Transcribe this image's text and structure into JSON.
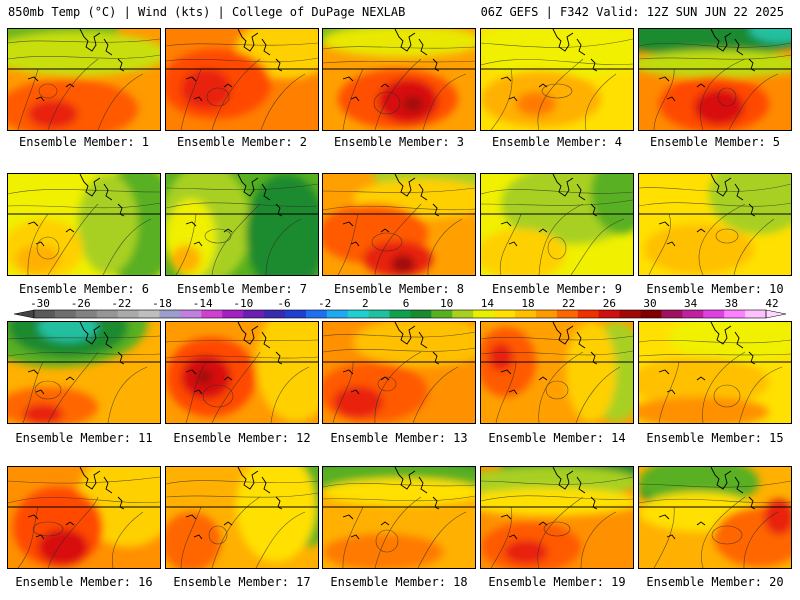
{
  "header": {
    "left": "850mb Temp (°C) | Wind (kts) | College of DuPage NEXLAB",
    "right": "06Z GEFS | F342 Valid: 12Z SUN JUN 22 2025"
  },
  "colorbar": {
    "labels": [
      "-30",
      "-26",
      "-22",
      "-18",
      "-14",
      "-10",
      "-6",
      "-2",
      "2",
      "6",
      "10",
      "14",
      "18",
      "22",
      "26",
      "30",
      "34",
      "38",
      "42"
    ],
    "colors": [
      "#5a5a5a",
      "#6e6e6e",
      "#828282",
      "#969696",
      "#aaaaaa",
      "#bebebe",
      "#9d9dcc",
      "#c080e0",
      "#d040d0",
      "#a020c0",
      "#6a1fb0",
      "#3a2ab0",
      "#1f3fd0",
      "#1f6ff0",
      "#20a8f0",
      "#20d0d0",
      "#20c0a0",
      "#10a050",
      "#1a8a2e",
      "#58b020",
      "#a8d020",
      "#e8f000",
      "#ffe000",
      "#ffc000",
      "#ff9900",
      "#ff6600",
      "#f03000",
      "#d01010",
      "#a00808",
      "#800000",
      "#a01060",
      "#c020a0",
      "#e040e0",
      "#ff80ff",
      "#ffc0ff"
    ]
  },
  "panels": [
    {
      "caption": "Ensemble Member: 1",
      "base": "#ff9a00",
      "layers": [
        {
          "c": "#6fb51c",
          "cx": 30,
          "cy": 0,
          "rx": 80,
          "ry": 30
        },
        {
          "c": "#c9df0f",
          "cx": 70,
          "cy": 25,
          "rx": 90,
          "ry": 22
        },
        {
          "c": "#ff5a00",
          "cx": 60,
          "cy": 80,
          "rx": 70,
          "ry": 30
        },
        {
          "c": "#e82010",
          "cx": 45,
          "cy": 85,
          "rx": 25,
          "ry": 14
        }
      ]
    },
    {
      "caption": "Ensemble Member: 2",
      "base": "#ff8000",
      "layers": [
        {
          "c": "#ffd000",
          "cx": 120,
          "cy": 20,
          "rx": 50,
          "ry": 30
        },
        {
          "c": "#ff4a00",
          "cx": 50,
          "cy": 55,
          "rx": 55,
          "ry": 35
        },
        {
          "c": "#e82010",
          "cx": 40,
          "cy": 60,
          "rx": 25,
          "ry": 20
        }
      ]
    },
    {
      "caption": "Ensemble Member: 3",
      "base": "#ffa000",
      "layers": [
        {
          "c": "#7dbb1e",
          "cx": 20,
          "cy": 0,
          "rx": 60,
          "ry": 18
        },
        {
          "c": "#e8e800",
          "cx": 80,
          "cy": 12,
          "rx": 80,
          "ry": 16
        },
        {
          "c": "#ff5000",
          "cx": 75,
          "cy": 70,
          "rx": 60,
          "ry": 30
        },
        {
          "c": "#d81010",
          "cx": 85,
          "cy": 72,
          "rx": 30,
          "ry": 22
        },
        {
          "c": "#a00808",
          "cx": 90,
          "cy": 75,
          "rx": 10,
          "ry": 8
        }
      ]
    },
    {
      "caption": "Ensemble Member: 4",
      "base": "#ffe000",
      "layers": [
        {
          "c": "#f0f000",
          "cx": 80,
          "cy": 20,
          "rx": 90,
          "ry": 30
        },
        {
          "c": "#ffb000",
          "cx": 60,
          "cy": 70,
          "rx": 60,
          "ry": 28
        },
        {
          "c": "#ff7a00",
          "cx": 55,
          "cy": 75,
          "rx": 20,
          "ry": 12
        }
      ]
    },
    {
      "caption": "Ensemble Member: 5",
      "base": "#ff8a00",
      "layers": [
        {
          "c": "#1a8a2e",
          "cx": 70,
          "cy": 0,
          "rx": 110,
          "ry": 28
        },
        {
          "c": "#20c0a0",
          "cx": 140,
          "cy": 0,
          "rx": 30,
          "ry": 14
        },
        {
          "c": "#c0dc10",
          "cx": 80,
          "cy": 35,
          "rx": 90,
          "ry": 14
        },
        {
          "c": "#ff4a00",
          "cx": 75,
          "cy": 75,
          "rx": 55,
          "ry": 28
        },
        {
          "c": "#d81010",
          "cx": 80,
          "cy": 78,
          "rx": 25,
          "ry": 18
        }
      ]
    },
    {
      "caption": "Ensemble Member: 6",
      "base": "#f0f000",
      "layers": [
        {
          "c": "#58b020",
          "cx": 130,
          "cy": 50,
          "rx": 40,
          "ry": 60
        },
        {
          "c": "#a8d020",
          "cx": 100,
          "cy": 50,
          "rx": 30,
          "ry": 50
        },
        {
          "c": "#ffd000",
          "cx": 35,
          "cy": 75,
          "rx": 40,
          "ry": 30
        },
        {
          "c": "#ffb000",
          "cx": 30,
          "cy": 85,
          "rx": 22,
          "ry": 14
        }
      ]
    },
    {
      "caption": "Ensemble Member: 7",
      "base": "#58b020",
      "layers": [
        {
          "c": "#a8d020",
          "cx": 40,
          "cy": 50,
          "rx": 45,
          "ry": 60
        },
        {
          "c": "#f0f000",
          "cx": 25,
          "cy": 65,
          "rx": 25,
          "ry": 40
        },
        {
          "c": "#ffb000",
          "cx": 20,
          "cy": 85,
          "rx": 15,
          "ry": 14
        },
        {
          "c": "#1a8a2e",
          "cx": 120,
          "cy": 60,
          "rx": 40,
          "ry": 60
        }
      ]
    },
    {
      "caption": "Ensemble Member: 8",
      "base": "#ffa000",
      "layers": [
        {
          "c": "#a8d020",
          "cx": 110,
          "cy": 0,
          "rx": 60,
          "ry": 20
        },
        {
          "c": "#ffd000",
          "cx": 100,
          "cy": 25,
          "rx": 70,
          "ry": 20
        },
        {
          "c": "#ff5a00",
          "cx": 50,
          "cy": 60,
          "rx": 55,
          "ry": 30
        },
        {
          "c": "#e82010",
          "cx": 75,
          "cy": 85,
          "rx": 35,
          "ry": 18
        },
        {
          "c": "#a00808",
          "cx": 80,
          "cy": 90,
          "rx": 12,
          "ry": 9
        }
      ]
    },
    {
      "caption": "Ensemble Member: 9",
      "base": "#f0f000",
      "layers": [
        {
          "c": "#a8d020",
          "cx": 90,
          "cy": 30,
          "rx": 70,
          "ry": 40
        },
        {
          "c": "#58b020",
          "cx": 140,
          "cy": 20,
          "rx": 30,
          "ry": 40
        },
        {
          "c": "#ffd000",
          "cx": 40,
          "cy": 80,
          "rx": 45,
          "ry": 25
        }
      ]
    },
    {
      "caption": "Ensemble Member: 10",
      "base": "#ffe000",
      "layers": [
        {
          "c": "#a8d020",
          "cx": 120,
          "cy": 20,
          "rx": 50,
          "ry": 40
        },
        {
          "c": "#ffc000",
          "cx": 60,
          "cy": 75,
          "rx": 55,
          "ry": 25
        }
      ]
    },
    {
      "caption": "Ensemble Member: 11",
      "base": "#ffb000",
      "layers": [
        {
          "c": "#58b020",
          "cx": 50,
          "cy": 0,
          "rx": 90,
          "ry": 45
        },
        {
          "c": "#1a8a2e",
          "cx": 60,
          "cy": 5,
          "rx": 60,
          "ry": 30
        },
        {
          "c": "#20c0a0",
          "cx": 60,
          "cy": 5,
          "rx": 30,
          "ry": 15
        },
        {
          "c": "#ff6600",
          "cx": 40,
          "cy": 85,
          "rx": 50,
          "ry": 20
        },
        {
          "c": "#e82010",
          "cx": 35,
          "cy": 92,
          "rx": 20,
          "ry": 10
        }
      ]
    },
    {
      "caption": "Ensemble Member: 12",
      "base": "#ff9a00",
      "layers": [
        {
          "c": "#ffd000",
          "cx": 130,
          "cy": 40,
          "rx": 40,
          "ry": 60
        },
        {
          "c": "#ff4a00",
          "cx": 45,
          "cy": 55,
          "rx": 45,
          "ry": 40
        },
        {
          "c": "#d81010",
          "cx": 40,
          "cy": 55,
          "rx": 25,
          "ry": 22
        },
        {
          "c": "#a00808",
          "cx": 38,
          "cy": 55,
          "rx": 8,
          "ry": 8
        }
      ]
    },
    {
      "caption": "Ensemble Member: 13",
      "base": "#ff9000",
      "layers": [
        {
          "c": "#ffc000",
          "cx": 100,
          "cy": 20,
          "rx": 70,
          "ry": 25
        },
        {
          "c": "#ff5a00",
          "cx": 50,
          "cy": 70,
          "rx": 55,
          "ry": 30
        },
        {
          "c": "#e82010",
          "cx": 35,
          "cy": 80,
          "rx": 25,
          "ry": 16
        }
      ]
    },
    {
      "caption": "Ensemble Member: 14",
      "base": "#ffa000",
      "layers": [
        {
          "c": "#a8d020",
          "cx": 135,
          "cy": 50,
          "rx": 30,
          "ry": 50
        },
        {
          "c": "#ffd000",
          "cx": 110,
          "cy": 50,
          "rx": 25,
          "ry": 50
        },
        {
          "c": "#ff5a00",
          "cx": 25,
          "cy": 40,
          "rx": 30,
          "ry": 35
        },
        {
          "c": "#e82010",
          "cx": 20,
          "cy": 35,
          "rx": 12,
          "ry": 14
        }
      ]
    },
    {
      "caption": "Ensemble Member: 15",
      "base": "#ffe000",
      "layers": [
        {
          "c": "#f0f000",
          "cx": 100,
          "cy": 15,
          "rx": 70,
          "ry": 25
        },
        {
          "c": "#ffc000",
          "cx": 60,
          "cy": 60,
          "rx": 70,
          "ry": 25
        },
        {
          "c": "#ff9000",
          "cx": 60,
          "cy": 90,
          "rx": 70,
          "ry": 15
        }
      ]
    },
    {
      "caption": "Ensemble Member: 16",
      "base": "#ff9000",
      "layers": [
        {
          "c": "#ffd000",
          "cx": 120,
          "cy": 30,
          "rx": 50,
          "ry": 50
        },
        {
          "c": "#ff4a00",
          "cx": 50,
          "cy": 60,
          "rx": 45,
          "ry": 40
        },
        {
          "c": "#d81010",
          "cx": 55,
          "cy": 80,
          "rx": 25,
          "ry": 18
        }
      ]
    },
    {
      "caption": "Ensemble Member: 17",
      "base": "#ffb000",
      "layers": [
        {
          "c": "#58b020",
          "cx": 140,
          "cy": 35,
          "rx": 30,
          "ry": 45
        },
        {
          "c": "#ffe000",
          "cx": 110,
          "cy": 40,
          "rx": 40,
          "ry": 55
        },
        {
          "c": "#ff6600",
          "cx": 25,
          "cy": 75,
          "rx": 30,
          "ry": 30
        }
      ]
    },
    {
      "caption": "Ensemble Member: 18",
      "base": "#ffb000",
      "layers": [
        {
          "c": "#1a8a2e",
          "cx": 70,
          "cy": 0,
          "rx": 100,
          "ry": 18
        },
        {
          "c": "#58b020",
          "cx": 70,
          "cy": 10,
          "rx": 100,
          "ry": 16
        },
        {
          "c": "#ffe000",
          "cx": 80,
          "cy": 25,
          "rx": 80,
          "ry": 14
        },
        {
          "c": "#ff7a00",
          "cx": 60,
          "cy": 85,
          "rx": 60,
          "ry": 18
        }
      ]
    },
    {
      "caption": "Ensemble Member: 19",
      "base": "#ff9000",
      "layers": [
        {
          "c": "#1a8a2e",
          "cx": 100,
          "cy": 0,
          "rx": 80,
          "ry": 22
        },
        {
          "c": "#a8d020",
          "cx": 70,
          "cy": 15,
          "rx": 90,
          "ry": 16
        },
        {
          "c": "#ffe000",
          "cx": 70,
          "cy": 35,
          "rx": 90,
          "ry": 14
        },
        {
          "c": "#ff5a00",
          "cx": 50,
          "cy": 80,
          "rx": 50,
          "ry": 25
        },
        {
          "c": "#e82010",
          "cx": 45,
          "cy": 85,
          "rx": 22,
          "ry": 12
        }
      ]
    },
    {
      "caption": "Ensemble Member: 20",
      "base": "#ffb000",
      "layers": [
        {
          "c": "#1a8a2e",
          "cx": 40,
          "cy": 20,
          "rx": 40,
          "ry": 25
        },
        {
          "c": "#58b020",
          "cx": 60,
          "cy": 15,
          "rx": 60,
          "ry": 25
        },
        {
          "c": "#ffe000",
          "cx": 60,
          "cy": 45,
          "rx": 60,
          "ry": 20
        },
        {
          "c": "#ff6600",
          "cx": 120,
          "cy": 70,
          "rx": 45,
          "ry": 30
        },
        {
          "c": "#e82010",
          "cx": 140,
          "cy": 50,
          "rx": 15,
          "ry": 18
        }
      ]
    }
  ]
}
